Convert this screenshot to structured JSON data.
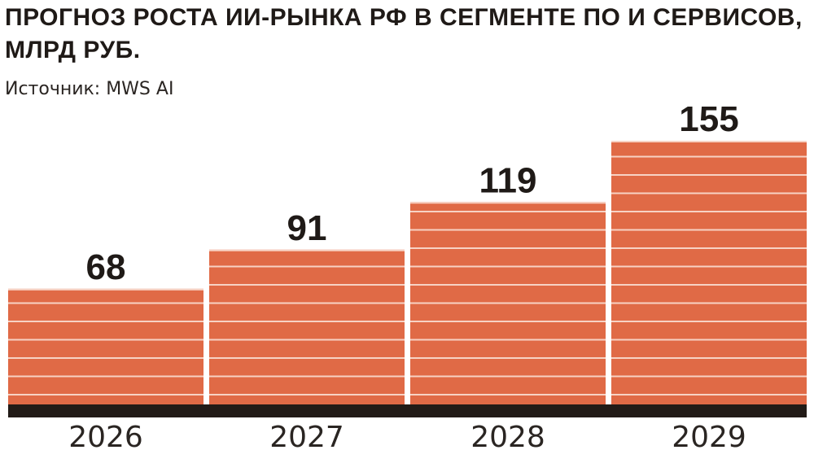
{
  "title": "ПРОГНОЗ РОСТА ИИ-РЫНКА РФ В СЕГМЕНТЕ ПО И СЕРВИСОВ, МЛРД РУБ.",
  "source": "Источник: MWS AI",
  "colors": {
    "bar": "#e06a46",
    "stripe": "#f7d2c4",
    "baseline": "#221b17",
    "text": "#1f1a17"
  },
  "chart_data": {
    "type": "bar",
    "title": "ПРОГНОЗ РОСТА ИИ-РЫНКА РФ В СЕГМЕНТЕ ПО И СЕРВИСОВ, МЛРД РУБ.",
    "categories": [
      "2026",
      "2027",
      "2028",
      "2029"
    ],
    "values": [
      68,
      91,
      119,
      155
    ],
    "ylim": [
      0,
      155
    ],
    "grid": false,
    "data_labels": true
  }
}
